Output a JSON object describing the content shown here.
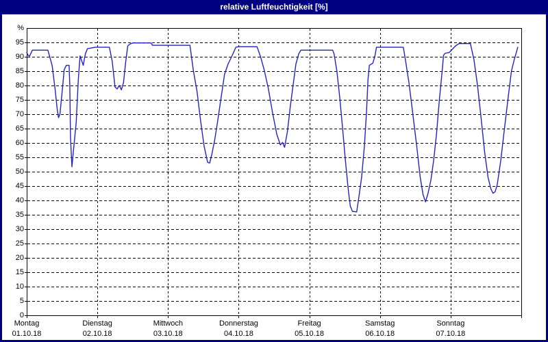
{
  "window": {
    "title": "relative Luftfeuchtigkeit [%]",
    "titlebar_bg": "#000080",
    "border_color": "#000080"
  },
  "chart_data": {
    "type": "line",
    "title": "relative Luftfeuchtigkeit [%]",
    "ylabel": "%",
    "ylim": [
      0,
      100
    ],
    "ytick_values": [
      0,
      5,
      10,
      15,
      20,
      25,
      30,
      35,
      40,
      45,
      50,
      55,
      60,
      65,
      70,
      75,
      80,
      85,
      90,
      95
    ],
    "ytick_labels": [
      "0",
      "5",
      "10",
      "15",
      "20",
      "25",
      "30",
      "35",
      "40",
      "45",
      "50",
      "55",
      "60",
      "65",
      "70",
      "75",
      "80",
      "85",
      "90",
      "95"
    ],
    "grid": "dashed horizontal every 5%, dashed vertical at each day boundary",
    "legend": "none",
    "line_color": "#2222CC",
    "axis_color": "#000000",
    "x_days": [
      {
        "weekday": "Montag",
        "date": "01.10.18"
      },
      {
        "weekday": "Dienstag",
        "date": "02.10.18"
      },
      {
        "weekday": "Mittwoch",
        "date": "03.10.18"
      },
      {
        "weekday": "Donnerstag",
        "date": "04.10.18"
      },
      {
        "weekday": "Freitag",
        "date": "05.10.18"
      },
      {
        "weekday": "Samstag",
        "date": "06.10.18"
      },
      {
        "weekday": "Sonntag",
        "date": "07.10.18"
      }
    ],
    "series": [
      {
        "name": "relative Luftfeuchtigkeit [%]",
        "x_unit": "days_from_monday_00h",
        "points": [
          [
            0.0,
            91.5
          ],
          [
            0.02,
            90.5
          ],
          [
            0.04,
            90.2
          ],
          [
            0.08,
            92.3
          ],
          [
            0.3,
            92.3
          ],
          [
            0.36,
            87
          ],
          [
            0.4,
            79
          ],
          [
            0.43,
            72
          ],
          [
            0.45,
            68.8
          ],
          [
            0.47,
            70
          ],
          [
            0.51,
            80
          ],
          [
            0.53,
            85.5
          ],
          [
            0.56,
            87
          ],
          [
            0.6,
            87
          ],
          [
            0.61,
            80
          ],
          [
            0.62,
            62
          ],
          [
            0.64,
            51.7
          ],
          [
            0.66,
            57
          ],
          [
            0.7,
            67
          ],
          [
            0.73,
            82
          ],
          [
            0.755,
            90.3
          ],
          [
            0.78,
            88.5
          ],
          [
            0.8,
            87
          ],
          [
            0.83,
            91
          ],
          [
            0.86,
            92.8
          ],
          [
            0.97,
            93.3
          ],
          [
            1.0,
            93.3
          ],
          [
            1.17,
            93.3
          ],
          [
            1.21,
            88.5
          ],
          [
            1.25,
            79.5
          ],
          [
            1.28,
            78.8
          ],
          [
            1.31,
            80
          ],
          [
            1.34,
            78.5
          ],
          [
            1.37,
            81
          ],
          [
            1.4,
            88
          ],
          [
            1.43,
            93.8
          ],
          [
            1.46,
            94.4
          ],
          [
            1.5,
            94.8
          ],
          [
            1.76,
            94.8
          ],
          [
            1.78,
            94
          ],
          [
            2.0,
            94
          ],
          [
            2.31,
            94
          ],
          [
            2.36,
            85
          ],
          [
            2.41,
            78
          ],
          [
            2.46,
            68
          ],
          [
            2.51,
            59
          ],
          [
            2.56,
            53.3
          ],
          [
            2.59,
            53
          ],
          [
            2.62,
            56
          ],
          [
            2.66,
            61
          ],
          [
            2.7,
            67.2
          ],
          [
            2.75,
            75.5
          ],
          [
            2.8,
            83.9
          ],
          [
            2.85,
            87.5
          ],
          [
            2.9,
            90
          ],
          [
            2.96,
            93.3
          ],
          [
            3.0,
            93.5
          ],
          [
            3.26,
            93.5
          ],
          [
            3.31,
            90
          ],
          [
            3.36,
            85.5
          ],
          [
            3.42,
            79
          ],
          [
            3.48,
            70.5
          ],
          [
            3.54,
            63
          ],
          [
            3.59,
            59.3
          ],
          [
            3.62,
            60.2
          ],
          [
            3.65,
            58.5
          ],
          [
            3.69,
            64
          ],
          [
            3.73,
            72.5
          ],
          [
            3.77,
            80
          ],
          [
            3.81,
            87.5
          ],
          [
            3.85,
            91
          ],
          [
            3.88,
            92.3
          ],
          [
            4.0,
            92.3
          ],
          [
            4.33,
            92.3
          ],
          [
            4.35,
            91
          ],
          [
            4.39,
            85
          ],
          [
            4.43,
            76
          ],
          [
            4.47,
            65.5
          ],
          [
            4.51,
            54
          ],
          [
            4.55,
            44
          ],
          [
            4.58,
            38
          ],
          [
            4.61,
            36.2
          ],
          [
            4.67,
            36
          ],
          [
            4.7,
            41
          ],
          [
            4.74,
            48
          ],
          [
            4.78,
            59
          ],
          [
            4.81,
            71
          ],
          [
            4.83,
            82
          ],
          [
            4.85,
            87
          ],
          [
            4.9,
            87.8
          ],
          [
            4.93,
            90.5
          ],
          [
            4.95,
            93.3
          ],
          [
            5.0,
            93.3
          ],
          [
            5.33,
            93.3
          ],
          [
            5.36,
            89
          ],
          [
            5.41,
            81
          ],
          [
            5.46,
            71
          ],
          [
            5.52,
            59
          ],
          [
            5.57,
            48
          ],
          [
            5.61,
            42
          ],
          [
            5.645,
            39.5
          ],
          [
            5.68,
            42.5
          ],
          [
            5.72,
            47
          ],
          [
            5.76,
            54
          ],
          [
            5.8,
            63
          ],
          [
            5.84,
            75
          ],
          [
            5.88,
            85
          ],
          [
            5.9,
            90.5
          ],
          [
            5.92,
            91.2
          ],
          [
            5.98,
            91.5
          ],
          [
            6.02,
            92.5
          ],
          [
            6.07,
            93.8
          ],
          [
            6.12,
            94.6
          ],
          [
            6.28,
            94.6
          ],
          [
            6.33,
            89
          ],
          [
            6.38,
            80
          ],
          [
            6.43,
            69
          ],
          [
            6.48,
            57
          ],
          [
            6.53,
            48
          ],
          [
            6.57,
            44
          ],
          [
            6.6,
            42.5
          ],
          [
            6.63,
            43
          ],
          [
            6.66,
            45.5
          ],
          [
            6.71,
            54
          ],
          [
            6.76,
            64.5
          ],
          [
            6.81,
            75
          ],
          [
            6.86,
            85
          ],
          [
            6.9,
            89
          ],
          [
            6.93,
            91.5
          ],
          [
            6.95,
            93.3
          ]
        ]
      }
    ]
  }
}
